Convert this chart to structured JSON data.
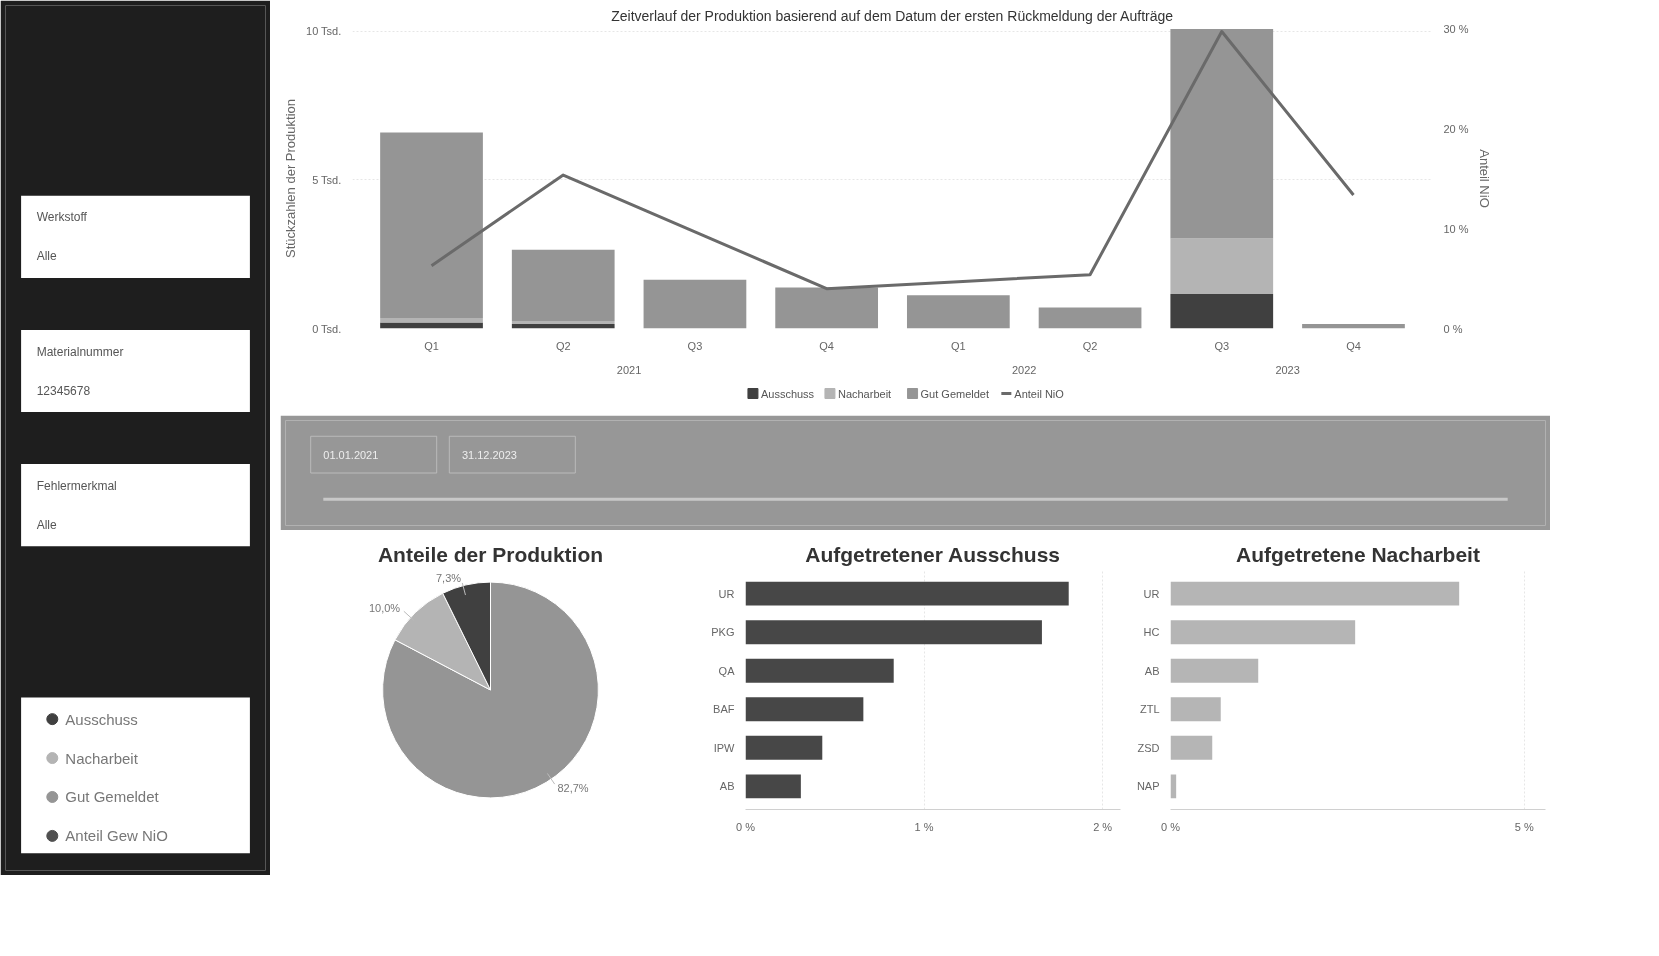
{
  "chart_data": [
    {
      "type": "other",
      "annotations": [
        "Werkstoff",
        "Alle",
        "Materialnummer",
        "12345678",
        "Fehlermerkmal",
        "Alle"
      ],
      "categories": [
        "Ausschuss",
        "Nacharbeit",
        "Gut Gemeldet",
        "Anteil Gew NiO"
      ],
      "colors": [
        "#404040",
        "#b4b4b4",
        "#959595",
        "#505050"
      ]
    },
    {
      "type": "bar",
      "title": "Zeitverlauf der Produktion basierend auf dem Datum der ersten Rückmeldung der Aufträge",
      "ylabel": "Stückzahlen der Produktion",
      "y2label": "Anteil NiO",
      "categories": [
        "Q1",
        "Q2",
        "Q3",
        "Q4",
        "Q1",
        "Q2",
        "Q3",
        "Q4"
      ],
      "annotations": [
        "2021",
        "2022",
        "2023"
      ],
      "stacked": true,
      "series": [
        {
          "name": "Ausschuss",
          "color": "#404040",
          "values": [
            0.2,
            0.15,
            0,
            0,
            0,
            0,
            1.16,
            0
          ]
        },
        {
          "name": "Nacharbeit",
          "color": "#b4b4b4",
          "values": [
            0.15,
            0.1,
            0,
            0,
            0,
            0,
            1.87,
            0
          ]
        },
        {
          "name": "Gut Gemeldet",
          "color": "#959595",
          "values": [
            6.25,
            2.4,
            1.64,
            1.38,
            1.12,
            0.71,
            7.05,
            0.15
          ]
        },
        {
          "name": "Anteil NiO",
          "color": "#6a6a6a",
          "type": "line",
          "axis": "y2",
          "values": [
            6.3,
            15.4,
            9.7,
            4.0,
            4.7,
            5.4,
            29.8,
            13.4
          ]
        }
      ],
      "ylim": [
        0,
        10.1
      ],
      "yticks": [
        {
          "value": 0,
          "label": "0 Tsd."
        },
        {
          "value": 5,
          "label": "5 Tsd."
        },
        {
          "value": 10,
          "label": "10 Tsd."
        }
      ],
      "y2lim": [
        0,
        30.1
      ],
      "y2ticks": [
        {
          "value": 0,
          "label": "0 %"
        },
        {
          "value": 10,
          "label": "10 %"
        },
        {
          "value": 20,
          "label": "20 %"
        },
        {
          "value": 30,
          "label": "30 %"
        }
      ],
      "grid": "y",
      "legend": "bottom",
      "line_style": "solid",
      "marker": "none"
    },
    {
      "type": "other",
      "annotations": [
        "01.01.2021",
        "31.12.2023"
      ]
    },
    {
      "type": "pie",
      "title": "Anteile der Produktion",
      "categories": [
        null,
        null,
        null
      ],
      "values": [
        82.7,
        10.0,
        7.3
      ],
      "colors": [
        "#959595",
        "#b4b4b4",
        "#404040"
      ],
      "value_labels": [
        "82,7%",
        "10,0%",
        "7,3%"
      ]
    },
    {
      "type": "bar",
      "orientation": "horizontal",
      "title": "Aufgetretener Ausschuss",
      "categories": [
        "UR",
        "PKG",
        "QA",
        "BAF",
        "IPW",
        "AB"
      ],
      "values": [
        1.81,
        1.66,
        0.83,
        0.66,
        0.43,
        0.31
      ],
      "color": "#474747",
      "xlim": [
        0,
        2.1
      ],
      "xticks": [
        {
          "value": 0,
          "label": "0 %"
        },
        {
          "value": 1,
          "label": "1 %"
        },
        {
          "value": 2,
          "label": "2 %"
        }
      ],
      "grid": "x"
    },
    {
      "type": "bar",
      "orientation": "horizontal",
      "title": "Aufgetretene Nacharbeit",
      "categories": [
        "UR",
        "HC",
        "AB",
        "ZTL",
        "ZSD",
        "NAP"
      ],
      "values": [
        4.08,
        2.61,
        1.24,
        0.71,
        0.59,
        0.08
      ],
      "color": "#b5b5b5",
      "xlim": [
        0,
        5.3
      ],
      "xticks": [
        {
          "value": 0,
          "label": "0 %"
        },
        {
          "value": 5,
          "label": "5 %"
        }
      ],
      "grid": "x"
    }
  ]
}
